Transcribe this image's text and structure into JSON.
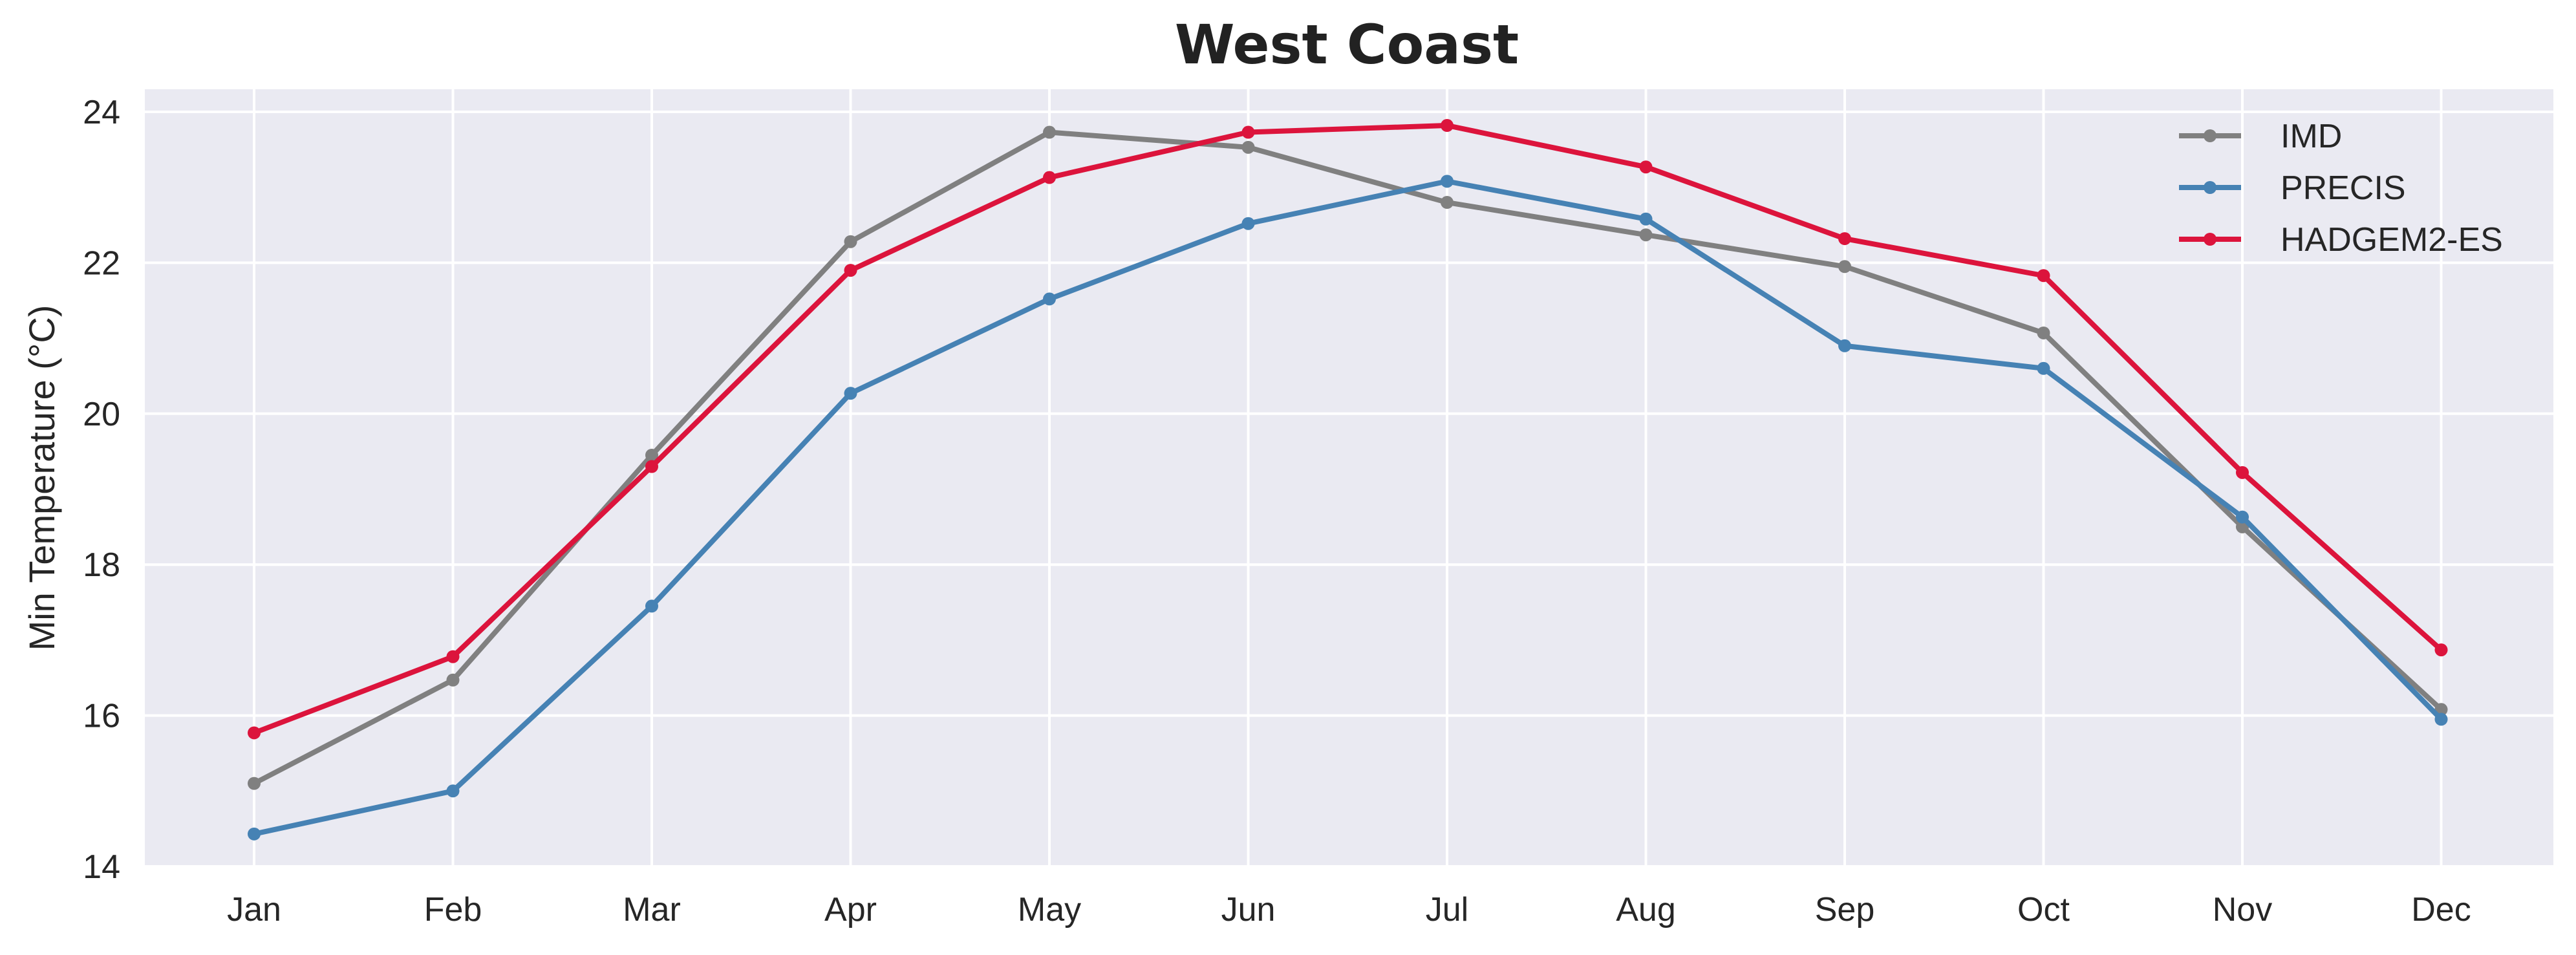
{
  "chart_data": {
    "type": "line",
    "title": "West Coast",
    "xlabel": "",
    "ylabel": "Min Temperature ($^\\circ$C)",
    "ylabel_display": "Min Temperature (°C)",
    "categories": [
      "Jan",
      "Feb",
      "Mar",
      "Apr",
      "May",
      "Jun",
      "Jul",
      "Aug",
      "Sep",
      "Oct",
      "Nov",
      "Dec"
    ],
    "ylim": [
      14,
      24.3
    ],
    "yticks": [
      14,
      16,
      18,
      20,
      22,
      24
    ],
    "grid": true,
    "legend_position": "top-right",
    "series": [
      {
        "name": "IMD",
        "color": "#808080",
        "values": [
          15.1,
          16.47,
          19.45,
          22.28,
          23.73,
          23.53,
          22.8,
          22.37,
          21.95,
          21.07,
          18.5,
          16.08
        ]
      },
      {
        "name": "PRECIS",
        "color": "#4682b4",
        "values": [
          14.43,
          15.0,
          17.45,
          20.27,
          21.52,
          22.52,
          23.08,
          22.58,
          20.9,
          20.6,
          18.63,
          15.95
        ]
      },
      {
        "name": "HADGEM2-ES",
        "color": "#dc143c",
        "values": [
          15.77,
          16.78,
          19.3,
          21.9,
          23.13,
          23.73,
          23.82,
          23.27,
          22.32,
          21.83,
          19.22,
          16.87
        ]
      }
    ]
  }
}
